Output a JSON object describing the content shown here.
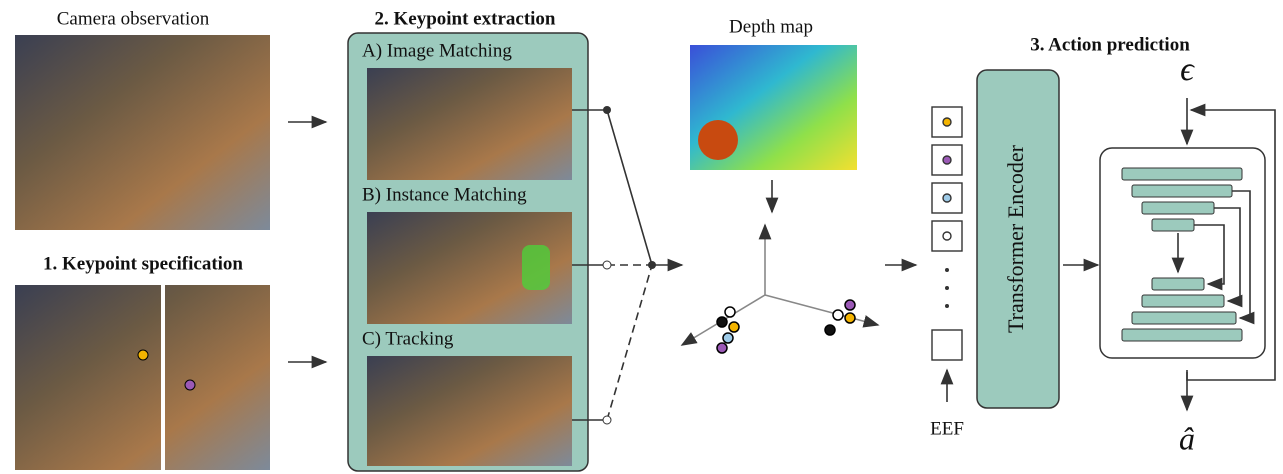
{
  "panels": {
    "observation": {
      "title": "Camera observation"
    },
    "specification": {
      "title": "1. Keypoint specification"
    },
    "extraction": {
      "title": "2. Keypoint extraction",
      "methods": [
        "A) Image Matching",
        "B) Instance Matching",
        "C) Tracking"
      ]
    },
    "depth": {
      "title": "Depth map"
    },
    "action": {
      "title": "3. Action prediction",
      "encoder": "Transformer Encoder",
      "input": "EEF",
      "noise": "ϵ",
      "output": "â"
    }
  }
}
